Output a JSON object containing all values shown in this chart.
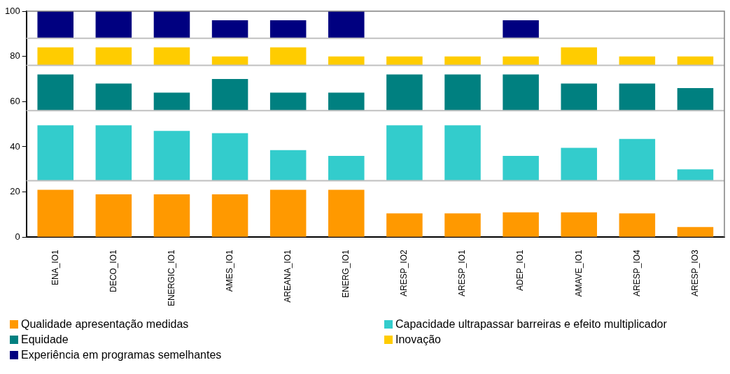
{
  "chart_data": {
    "type": "bar",
    "stacked": false,
    "categories": [
      "ENA_IO1",
      "DECO_IO1",
      "ENERGIC_IO1",
      "AMES_IO1",
      "AREANA_IO1",
      "ENERG_IO1",
      "ARESP_IO2",
      "ARESP_IO1",
      "ADEP_IO1",
      "AMAVE_IO1",
      "ARESP_IO4",
      "ARESP_IO3"
    ],
    "series": [
      {
        "name": "Qualidade apresentação medidas",
        "color": "#ff9900",
        "base": [
          0,
          0,
          0,
          0,
          0,
          0,
          0,
          0,
          0,
          0,
          0,
          0
        ],
        "values": [
          21,
          19,
          19,
          19,
          21,
          21,
          10.5,
          10.5,
          11,
          11,
          10.5,
          4.5
        ]
      },
      {
        "name": "Capacidade ultrapassar barreiras e efeito multiplicador",
        "color": "#33cccc",
        "base": [
          25,
          25,
          25,
          25,
          25,
          25,
          25,
          25,
          25,
          25,
          25,
          25
        ],
        "values": [
          24.5,
          24.5,
          22,
          21,
          13.5,
          11,
          24.5,
          24.5,
          11,
          14.5,
          18.5,
          5
        ]
      },
      {
        "name": "Equidade",
        "color": "#008080",
        "base": [
          56,
          56,
          56,
          56,
          56,
          56,
          56,
          56,
          56,
          56,
          56,
          56
        ],
        "values": [
          16,
          12,
          8,
          14,
          8,
          8,
          16,
          16,
          16,
          12,
          12,
          10
        ]
      },
      {
        "name": "Inovação",
        "color": "#ffcc00",
        "base": [
          76,
          76,
          76,
          76,
          76,
          76,
          76,
          76,
          76,
          76,
          76,
          76
        ],
        "values": [
          8,
          8,
          8,
          4,
          8,
          4,
          4,
          4,
          4,
          8,
          4,
          4
        ]
      },
      {
        "name": "Experiência em programas semelhantes",
        "color": "#000080",
        "base": [
          88,
          88,
          88,
          88,
          88,
          88,
          null,
          null,
          88,
          null,
          null,
          null
        ],
        "values": [
          12,
          12,
          12,
          8,
          8,
          12,
          null,
          null,
          8,
          null,
          null,
          null
        ]
      }
    ],
    "ylim": [
      0,
      100
    ],
    "yticks": [
      0,
      20,
      40,
      60,
      80,
      100
    ],
    "grid": false,
    "legend": "bottom",
    "ref_lines": [
      {
        "axis": "y",
        "value": 25,
        "color": "#c0c0c0"
      },
      {
        "axis": "y",
        "value": 56,
        "color": "#c0c0c0"
      },
      {
        "axis": "y",
        "value": 76,
        "color": "#c0c0c0"
      },
      {
        "axis": "y",
        "value": 88,
        "color": "#c0c0c0"
      }
    ]
  }
}
